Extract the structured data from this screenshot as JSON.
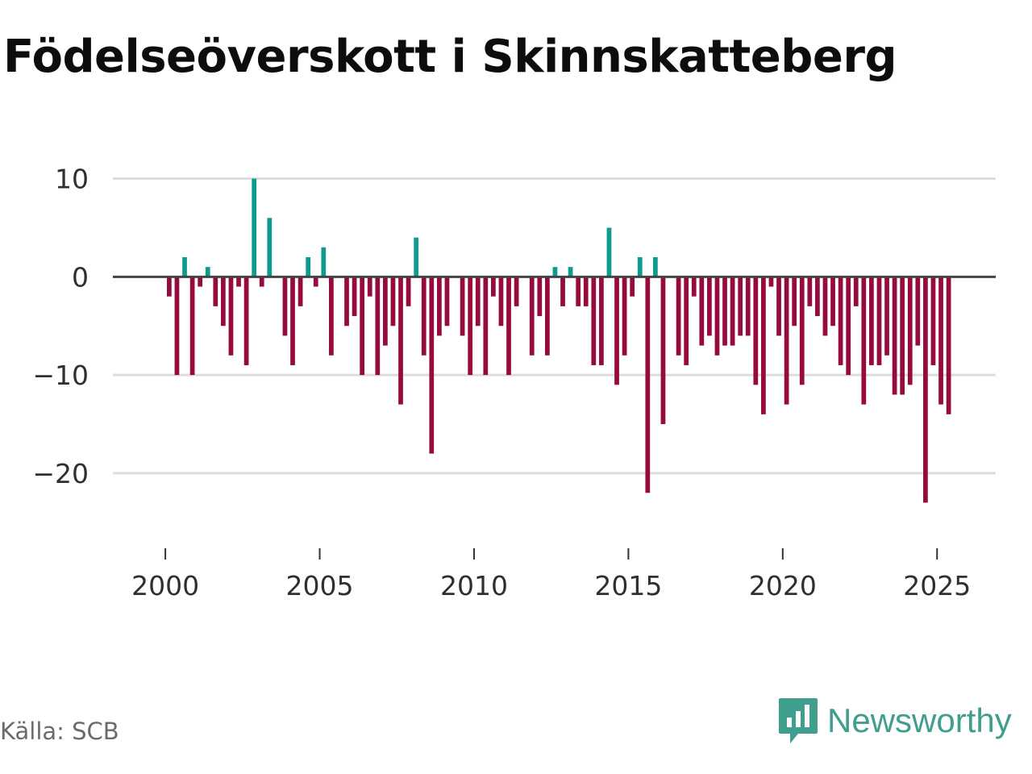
{
  "chart_data": {
    "type": "bar",
    "title": "Födelseöverskott i Skinnskatteberg",
    "source": "Källa: SCB",
    "xlabel": "",
    "ylabel": "",
    "xlim": [
      1998.3,
      2026.9
    ],
    "ylim": [
      -26,
      13
    ],
    "y_ticks": [
      10,
      0,
      -10,
      -20
    ],
    "y_tick_labels": [
      "10",
      "0",
      "−10",
      "−20"
    ],
    "x_ticks": [
      2000,
      2005,
      2010,
      2015,
      2020,
      2025
    ],
    "x_tick_labels": [
      "2000",
      "2005",
      "2010",
      "2015",
      "2020",
      "2025"
    ],
    "grid": true,
    "bar_width": 0.15,
    "colors": {
      "positive": "#0e9b8f",
      "negative": "#960a3e",
      "zero_line": "#444444",
      "grid": "#dddddd"
    },
    "series": [
      {
        "name": "Födelseöverskott",
        "x": [
          2000.125,
          2000.375,
          2000.625,
          2000.875,
          2001.125,
          2001.375,
          2001.625,
          2001.875,
          2002.125,
          2002.375,
          2002.625,
          2002.875,
          2003.125,
          2003.375,
          2003.625,
          2003.875,
          2004.125,
          2004.375,
          2004.625,
          2004.875,
          2005.125,
          2005.375,
          2005.625,
          2005.875,
          2006.125,
          2006.375,
          2006.625,
          2006.875,
          2007.125,
          2007.375,
          2007.625,
          2007.875,
          2008.125,
          2008.375,
          2008.625,
          2008.875,
          2009.125,
          2009.375,
          2009.625,
          2009.875,
          2010.125,
          2010.375,
          2010.625,
          2010.875,
          2011.125,
          2011.375,
          2011.625,
          2011.875,
          2012.125,
          2012.375,
          2012.625,
          2012.875,
          2013.125,
          2013.375,
          2013.625,
          2013.875,
          2014.125,
          2014.375,
          2014.625,
          2014.875,
          2015.125,
          2015.375,
          2015.625,
          2015.875,
          2016.125,
          2016.375,
          2016.625,
          2016.875,
          2017.125,
          2017.375,
          2017.625,
          2017.875,
          2018.125,
          2018.375,
          2018.625,
          2018.875,
          2019.125,
          2019.375,
          2019.625,
          2019.875,
          2020.125,
          2020.375,
          2020.625,
          2020.875,
          2021.125,
          2021.375,
          2021.625,
          2021.875,
          2022.125,
          2022.375,
          2022.625,
          2022.875,
          2023.125,
          2023.375,
          2023.625,
          2023.875,
          2024.125,
          2024.375,
          2024.625,
          2024.875,
          2025.125,
          2025.375,
          2025.625
        ],
        "values": [
          -2,
          -10,
          2,
          -10,
          -1,
          1,
          -3,
          -5,
          -8,
          -1,
          -9,
          10,
          -1,
          6,
          0,
          -6,
          -9,
          -3,
          2,
          -1,
          3,
          -8,
          0,
          -5,
          -4,
          -10,
          -2,
          -10,
          -7,
          -5,
          -13,
          -3,
          4,
          -8,
          -18,
          -6,
          -5,
          0,
          -6,
          -10,
          -5,
          -10,
          -2,
          -5,
          -10,
          -3,
          0,
          -8,
          -4,
          -8,
          1,
          -3,
          1,
          -3,
          -3,
          -9,
          -9,
          5,
          -11,
          -8,
          -2,
          2,
          -22,
          2,
          -15,
          0,
          -8,
          -9,
          -2,
          -7,
          -6,
          -8,
          -7,
          -7,
          -6,
          -6,
          -11,
          -14,
          -1,
          -6,
          -13,
          -5,
          -11,
          -3,
          -4,
          -6,
          -5,
          -9,
          -10,
          -3,
          -13,
          -9,
          -9,
          -8,
          -12,
          -12,
          -11,
          -7,
          -23,
          -9,
          -13,
          -14,
          0
        ]
      }
    ]
  },
  "footer": {
    "source": "Källa: SCB",
    "brand": "Newsworthy"
  }
}
